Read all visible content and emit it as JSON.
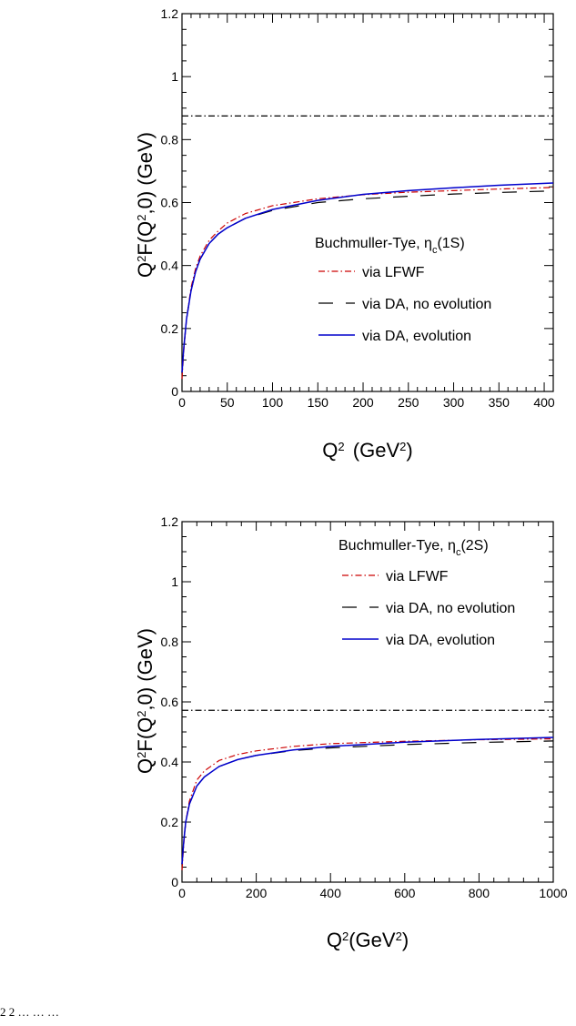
{
  "chart_data": [
    {
      "type": "line",
      "xlim": [
        0,
        410
      ],
      "ylim": [
        0,
        1.2
      ],
      "xticks": [
        0,
        50,
        100,
        150,
        200,
        250,
        300,
        350,
        400
      ],
      "yticks": [
        0,
        0.2,
        0.4,
        0.6,
        0.8,
        1,
        1.2
      ],
      "xtick_labels": [
        "0",
        "50",
        "100",
        "150",
        "200",
        "250",
        "300",
        "350",
        "400"
      ],
      "ytick_labels": [
        "0",
        "0.2",
        "0.4",
        "0.6",
        "0.8",
        "1",
        "1.2"
      ],
      "legend_title": "Buchmuller-Tye, η_c(1S)",
      "legend_position": "center-right",
      "grid": false,
      "series": [
        {
          "name": "via LFWF",
          "color": "#cc0000",
          "dash": "dash-dot",
          "x": [
            0,
            2,
            5,
            10,
            15,
            20,
            30,
            40,
            50,
            70,
            100,
            150,
            200,
            250,
            300,
            350,
            410
          ],
          "y": [
            0.04,
            0.13,
            0.23,
            0.33,
            0.39,
            0.43,
            0.48,
            0.51,
            0.535,
            0.565,
            0.59,
            0.612,
            0.625,
            0.633,
            0.638,
            0.643,
            0.648
          ]
        },
        {
          "name": "via DA, no evolution",
          "color": "#000000",
          "dash": "long-dash",
          "x": [
            0,
            2,
            5,
            10,
            15,
            20,
            30,
            40,
            50,
            70,
            100,
            150,
            200,
            250,
            300,
            350,
            410
          ],
          "y": [
            0.06,
            0.14,
            0.23,
            0.32,
            0.38,
            0.42,
            0.47,
            0.5,
            0.52,
            0.55,
            0.575,
            0.6,
            0.612,
            0.62,
            0.627,
            0.632,
            0.637
          ]
        },
        {
          "name": "via DA, evolution",
          "color": "#0000cc",
          "dash": "solid",
          "x": [
            0,
            2,
            5,
            10,
            15,
            20,
            30,
            40,
            50,
            70,
            100,
            150,
            200,
            250,
            300,
            350,
            410
          ],
          "y": [
            0.06,
            0.14,
            0.23,
            0.32,
            0.38,
            0.42,
            0.47,
            0.5,
            0.52,
            0.55,
            0.578,
            0.607,
            0.626,
            0.638,
            0.647,
            0.655,
            0.662
          ]
        },
        {
          "name": "",
          "color": "#000000",
          "dash": "dash-dot",
          "x": [
            0,
            410
          ],
          "y": [
            0.875,
            0.875
          ]
        }
      ]
    },
    {
      "type": "line",
      "xlim": [
        0,
        1000
      ],
      "ylim": [
        0,
        1.2
      ],
      "xticks": [
        0,
        200,
        400,
        600,
        800,
        1000
      ],
      "yticks": [
        0,
        0.2,
        0.4,
        0.6,
        0.8,
        1,
        1.2
      ],
      "xtick_labels": [
        "0",
        "200",
        "400",
        "600",
        "800",
        "1000"
      ],
      "ytick_labels": [
        "0",
        "0.2",
        "0.4",
        "0.6",
        "0.8",
        "1",
        "1.2"
      ],
      "legend_title": "Buchmuller-Tye, η_c(2S)",
      "legend_position": "top-right",
      "grid": false,
      "series": [
        {
          "name": "via LFWF",
          "color": "#cc0000",
          "dash": "dash-dot",
          "x": [
            0,
            5,
            10,
            20,
            40,
            60,
            100,
            150,
            200,
            300,
            400,
            600,
            800,
            1000
          ],
          "y": [
            0.04,
            0.13,
            0.2,
            0.27,
            0.34,
            0.37,
            0.405,
            0.425,
            0.437,
            0.452,
            0.461,
            0.469,
            0.474,
            0.477
          ]
        },
        {
          "name": "via DA, no evolution",
          "color": "#000000",
          "dash": "long-dash",
          "x": [
            0,
            5,
            10,
            20,
            40,
            60,
            100,
            150,
            200,
            300,
            400,
            600,
            800,
            1000
          ],
          "y": [
            0.06,
            0.14,
            0.2,
            0.26,
            0.32,
            0.35,
            0.385,
            0.408,
            0.422,
            0.438,
            0.447,
            0.458,
            0.465,
            0.47
          ]
        },
        {
          "name": "via DA, evolution",
          "color": "#0000cc",
          "dash": "solid",
          "x": [
            0,
            5,
            10,
            20,
            40,
            60,
            100,
            150,
            200,
            300,
            400,
            600,
            800,
            1000
          ],
          "y": [
            0.06,
            0.14,
            0.2,
            0.26,
            0.32,
            0.35,
            0.385,
            0.408,
            0.422,
            0.44,
            0.452,
            0.466,
            0.475,
            0.482
          ]
        },
        {
          "name": "",
          "color": "#000000",
          "dash": "dash-dot",
          "x": [
            0,
            1000
          ],
          "y": [
            0.572,
            0.572
          ]
        }
      ]
    }
  ],
  "caption": "2 2 … … …"
}
